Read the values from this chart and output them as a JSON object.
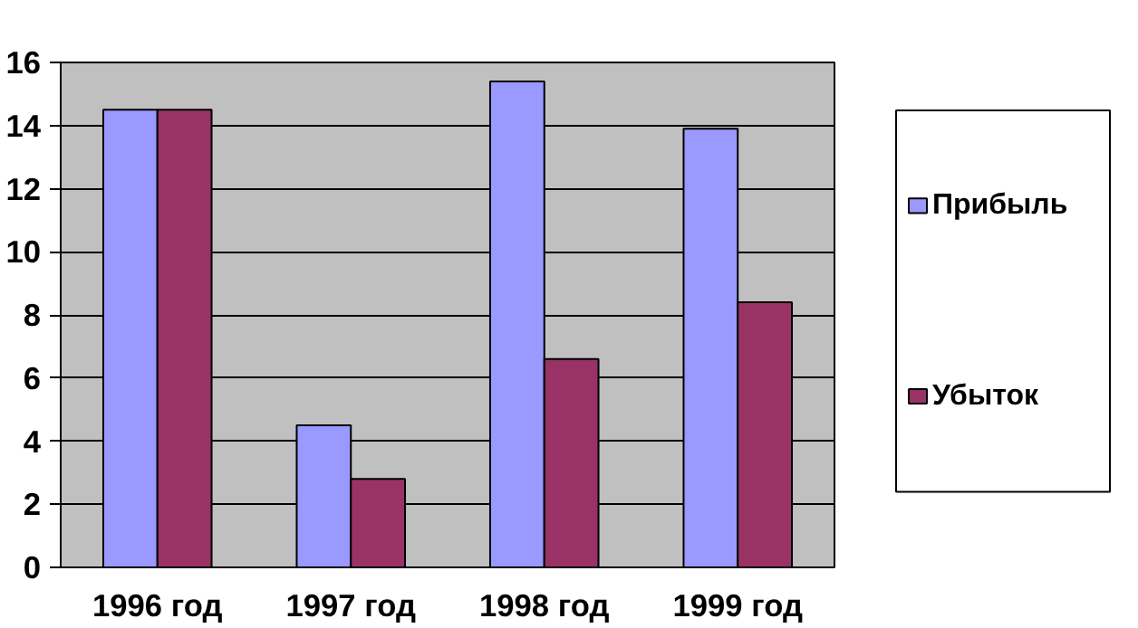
{
  "chart_data": {
    "type": "bar",
    "categories": [
      "1996 год",
      "1997 год",
      "1998 год",
      "1999 год"
    ],
    "series": [
      {
        "name": "Прибыль",
        "color": "#9999ff",
        "values": [
          14.5,
          4.5,
          15.4,
          13.9
        ]
      },
      {
        "name": "Убыток",
        "color": "#993366",
        "values": [
          14.5,
          2.8,
          6.6,
          8.4
        ]
      }
    ],
    "ylim": [
      0,
      16
    ],
    "yticks": [
      0,
      2,
      4,
      6,
      8,
      10,
      12,
      14,
      16
    ],
    "grid": "y",
    "legend": "right"
  }
}
